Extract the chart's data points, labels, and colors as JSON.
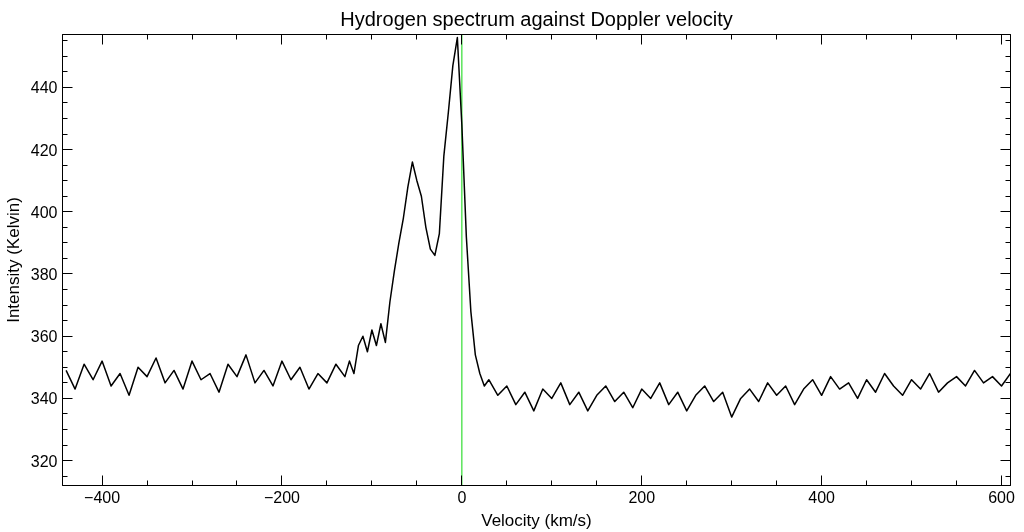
{
  "chart_data": {
    "type": "line",
    "title": "Hydrogen spectrum against Doppler velocity",
    "xlabel": "Velocity (km/s)",
    "ylabel": "Intensity (Kelvin)",
    "xlim": [
      -444,
      610
    ],
    "ylim": [
      312,
      457
    ],
    "xticks": [
      -400,
      -200,
      0,
      200,
      400,
      600
    ],
    "yticks": [
      320,
      340,
      360,
      380,
      400,
      420,
      440
    ],
    "grid": false,
    "marker": "none",
    "line_style": "solid",
    "ref_lines": [
      {
        "axis": "x",
        "value": 0,
        "color": "#33dd33"
      }
    ],
    "x": [
      -440,
      -430,
      -420,
      -410,
      -400,
      -390,
      -380,
      -370,
      -360,
      -350,
      -340,
      -330,
      -320,
      -310,
      -300,
      -290,
      -280,
      -270,
      -260,
      -250,
      -240,
      -230,
      -220,
      -210,
      -200,
      -190,
      -180,
      -170,
      -160,
      -150,
      -140,
      -130,
      -125,
      -120,
      -115,
      -110,
      -105,
      -100,
      -95,
      -90,
      -85,
      -80,
      -75,
      -70,
      -65,
      -60,
      -55,
      -50,
      -45,
      -40,
      -35,
      -30,
      -25,
      -20,
      -15,
      -10,
      -5,
      0,
      5,
      10,
      15,
      20,
      25,
      30,
      40,
      50,
      60,
      70,
      80,
      90,
      100,
      110,
      120,
      130,
      140,
      150,
      160,
      170,
      180,
      190,
      200,
      210,
      220,
      230,
      240,
      250,
      260,
      270,
      280,
      290,
      300,
      310,
      320,
      330,
      340,
      350,
      360,
      370,
      380,
      390,
      400,
      410,
      420,
      430,
      440,
      450,
      460,
      470,
      480,
      490,
      500,
      510,
      520,
      530,
      540,
      550,
      560,
      570,
      580,
      590,
      600,
      610
    ],
    "series": [
      {
        "color": "#000000",
        "values": [
          349,
          343,
          351,
          346,
          352,
          344,
          348,
          341,
          350,
          347,
          353,
          345,
          349,
          343,
          352,
          346,
          348,
          342,
          351,
          347,
          354,
          345,
          349,
          344,
          352,
          346,
          350,
          343,
          348,
          345,
          351,
          347,
          352,
          348,
          357,
          360,
          355,
          362,
          357,
          364,
          358,
          371,
          381,
          390,
          398,
          408,
          416,
          410,
          405,
          395,
          388,
          386,
          393,
          418,
          432,
          447,
          456,
          428,
          392,
          368,
          354,
          348,
          344,
          346,
          341,
          344,
          338,
          342,
          336,
          343,
          340,
          345,
          338,
          342,
          336,
          341,
          344,
          339,
          342,
          337,
          343,
          340,
          345,
          338,
          342,
          336,
          341,
          344,
          339,
          342,
          334,
          340,
          343,
          339,
          345,
          341,
          344,
          338,
          343,
          346,
          341,
          347,
          343,
          345,
          340,
          346,
          342,
          348,
          344,
          341,
          346,
          343,
          348,
          342,
          345,
          347,
          344,
          349,
          345,
          347,
          344,
          348
        ]
      }
    ]
  }
}
